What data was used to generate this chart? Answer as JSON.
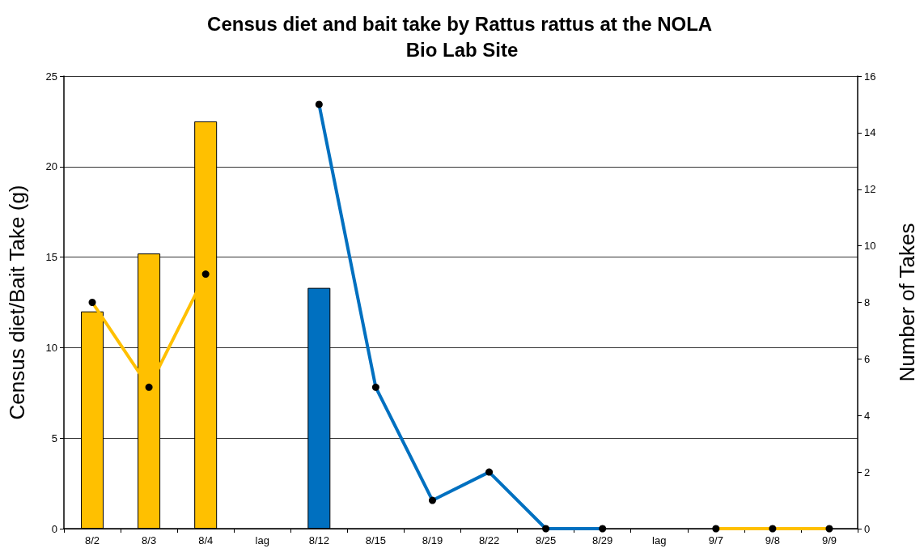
{
  "chart_data": {
    "type": "bar",
    "title": "Census diet and bait take by Rattus rattus at the NOLA Bio Lab Site",
    "ylabel": "Census diet/Bait Take (g)",
    "y2label": "Number of Takes",
    "categories": [
      "8/2",
      "8/3",
      "8/4",
      "lag",
      "8/12",
      "8/15",
      "8/19",
      "8/22",
      "8/25",
      "8/29",
      "lag",
      "9/7",
      "9/8",
      "9/9"
    ],
    "series": [
      {
        "colors": [
          "#ffc000",
          "#ffc000",
          "#ffc000",
          "#ffc000",
          "#0070c0",
          "#0070c0",
          "#0070c0",
          "#0070c0",
          "#0070c0",
          "#0070c0",
          "#ffc000",
          "#ffc000",
          "#ffc000",
          "#ffc000"
        ],
        "values": [
          12,
          15.2,
          22.5,
          null,
          13.3,
          null,
          null,
          null,
          null,
          null,
          null,
          null,
          null,
          null
        ]
      },
      {
        "type": "line",
        "axis": "y2",
        "color": "#ffc000",
        "values": [
          8,
          5,
          9,
          null,
          null,
          null,
          null,
          null,
          null,
          null,
          null,
          0,
          0,
          0
        ]
      },
      {
        "type": "line",
        "axis": "y2",
        "color": "#0070c0",
        "values": [
          null,
          null,
          null,
          null,
          15,
          5,
          1,
          2,
          0,
          0,
          null,
          null,
          null,
          null
        ]
      }
    ],
    "ylim": [
      0,
      25
    ],
    "yticks": [
      0,
      5,
      10,
      15,
      20,
      25
    ],
    "y2lim": [
      0,
      16
    ],
    "y2ticks": [
      0,
      2,
      4,
      6,
      8,
      10,
      12,
      14,
      16
    ],
    "grid": "y",
    "marker": "circle",
    "line_style": "solid"
  }
}
